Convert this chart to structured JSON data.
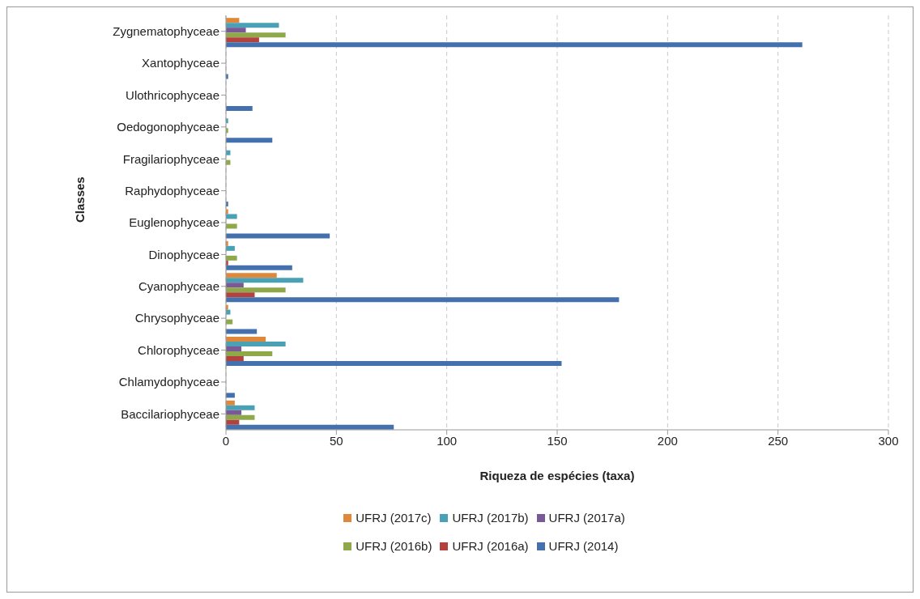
{
  "chart_data": {
    "type": "bar",
    "orientation": "horizontal",
    "xlabel": "Riqueza de espécies (taxa)",
    "ylabel": "Classes",
    "categories": [
      "Zygnematophyceae",
      "Xantophyceae",
      "Ulothricophyceae",
      "Oedogonophyceae",
      "Fragilariophyceae",
      "Raphydophyceae",
      "Euglenophyceae",
      "Dinophyceae",
      "Cyanophyceae",
      "Chrysophyceae",
      "Chlorophyceae",
      "Chlamydophyceae",
      "Baccilariophyceae"
    ],
    "series": [
      {
        "name": "UFRJ (2017c)",
        "color": "#e0883a",
        "values": [
          6,
          0,
          0,
          0,
          0,
          0,
          1,
          1,
          23,
          1,
          18,
          0,
          4
        ]
      },
      {
        "name": "UFRJ (2017b)",
        "color": "#4aa0b5",
        "values": [
          24,
          0,
          0,
          1,
          2,
          0,
          5,
          4,
          35,
          2,
          27,
          0,
          13
        ]
      },
      {
        "name": "UFRJ (2017a)",
        "color": "#7a5a96",
        "values": [
          9,
          0,
          0,
          0,
          0,
          0,
          0,
          0,
          8,
          0,
          7,
          0,
          7
        ]
      },
      {
        "name": "UFRJ (2016b)",
        "color": "#8ea84a",
        "values": [
          27,
          0,
          0,
          1,
          2,
          0,
          5,
          5,
          27,
          3,
          21,
          0,
          13
        ]
      },
      {
        "name": "UFRJ (2016a)",
        "color": "#b3413e",
        "values": [
          15,
          0,
          0,
          0,
          0,
          0,
          0,
          1,
          13,
          0,
          8,
          0,
          6
        ]
      },
      {
        "name": "UFRJ (2014)",
        "color": "#4470ad",
        "values": [
          261,
          1,
          12,
          21,
          0,
          1,
          47,
          30,
          178,
          14,
          152,
          4,
          76
        ]
      }
    ],
    "xlim": [
      0,
      300
    ],
    "xticks": [
      0,
      50,
      100,
      150,
      200,
      250,
      300
    ],
    "grid": "x",
    "legend": "bottom"
  }
}
